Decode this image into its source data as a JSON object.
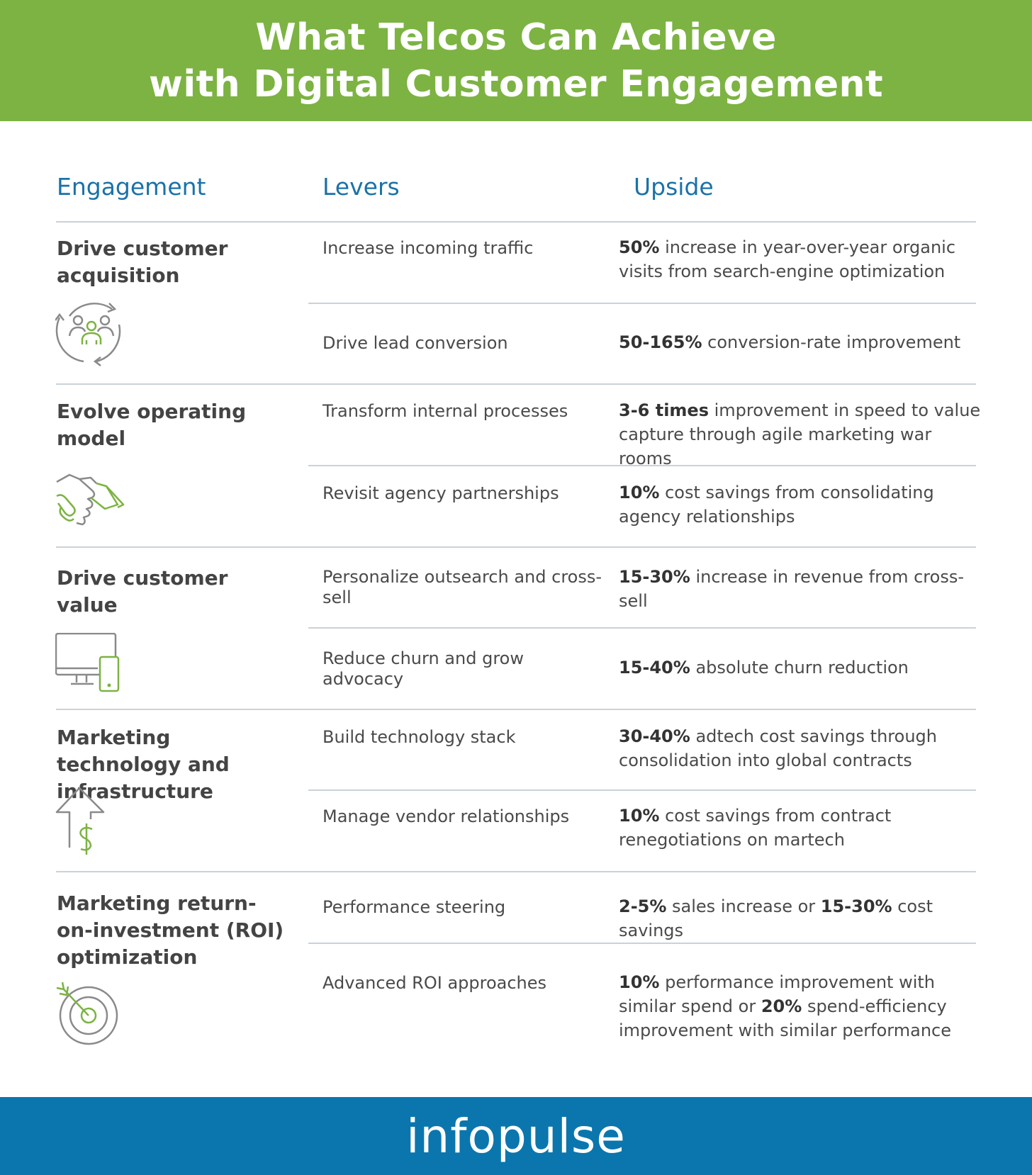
{
  "header": {
    "title_line1": "What Telcos Can Achieve",
    "title_line2": "with Digital Customer Engagement"
  },
  "columns": {
    "engagement": "Engagement",
    "levers": "Levers",
    "upside": "Upside"
  },
  "sections": [
    {
      "title": "Drive customer acquisition",
      "icon": "customer-cycle-icon",
      "rows": [
        {
          "lever": "Increase incoming traffic",
          "upside_bold": "50%",
          "upside_text": " increase in year-over-year organic visits from search-engine optimization"
        },
        {
          "lever": "Drive lead conversion",
          "upside_bold": "50-165%",
          "upside_text": " conversion-rate improvement"
        }
      ]
    },
    {
      "title": "Evolve operating model",
      "icon": "handshake-icon",
      "rows": [
        {
          "lever": "Transform internal processes",
          "upside_bold": "3-6 times",
          "upside_text": " improvement in speed to value capture through agile marketing war rooms"
        },
        {
          "lever": "Revisit agency partnerships",
          "upside_bold": "10%",
          "upside_text": " cost savings from consolidating agency relationships"
        }
      ]
    },
    {
      "title": "Drive customer value",
      "icon": "devices-icon",
      "rows": [
        {
          "lever": "Personalize outsearch and cross-sell",
          "upside_bold": "15-30%",
          "upside_text": " increase in revenue from cross-sell"
        },
        {
          "lever": "Reduce churn and grow advocacy",
          "upside_bold": "15-40%",
          "upside_text": " absolute churn reduction"
        }
      ]
    },
    {
      "title": "Marketing technology and infrastructure",
      "icon": "arrow-dollar-icon",
      "rows": [
        {
          "lever": "Build technology stack",
          "upside_bold": "30-40%",
          "upside_text": " adtech cost savings through consolidation into global contracts"
        },
        {
          "lever": "Manage vendor relationships",
          "upside_bold": "10%",
          "upside_text": " cost savings from contract renegotiations on martech"
        }
      ]
    },
    {
      "title": "Marketing return-on-investment (ROI) optimization",
      "icon": "target-icon",
      "rows": [
        {
          "lever": "Performance steering",
          "upside_bold": "2-5%",
          "upside_text": " sales increase or ",
          "upside_bold2": "15-30%",
          "upside_text2": " cost savings"
        },
        {
          "lever": "Advanced ROI approaches",
          "upside_bold": "10%",
          "upside_text": " performance improvement with similar spend or ",
          "upside_bold2": "20%",
          "upside_text2": " spend-efficiency improvement with similar performance"
        }
      ]
    }
  ],
  "footer": {
    "logo": "infopulse"
  },
  "colors": {
    "green": "#7cb342",
    "blue": "#0b76ad",
    "heading_blue": "#1a72a8"
  }
}
